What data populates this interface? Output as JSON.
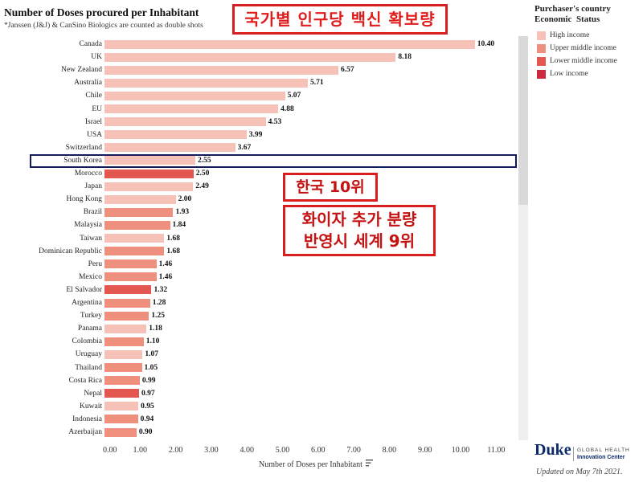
{
  "overlays": {
    "headline": "국가별 인구당 백신 확보량",
    "rank": "한국 10위",
    "note_line1": "화이자 추가 분량",
    "note_line2": "반영시 세계 9위"
  },
  "legend": {
    "title_line1": "Purchaser's country",
    "title_line2": "Economic  Status",
    "position": "right",
    "items": [
      {
        "label": "High income",
        "color": "#f6c1b7"
      },
      {
        "label": "Upper middle income",
        "color": "#ef8f7d"
      },
      {
        "label": "Lower middle income",
        "color": "#e45750"
      },
      {
        "label": "Low income",
        "color": "#cc2a40"
      }
    ]
  },
  "chart_data": {
    "type": "bar",
    "orientation": "horizontal",
    "title": "Number of Doses procured per Inhabitant",
    "subtitle": "*Janssen (J&J) & CanSino Biologics are counted as double shots",
    "xlabel": "Number of Doses per Inhabitant",
    "ylabel": "",
    "xlim": [
      0,
      11.5
    ],
    "grid": false,
    "x_ticks": [
      "0.00",
      "1.00",
      "2.00",
      "3.00",
      "4.00",
      "5.00",
      "6.00",
      "7.00",
      "8.00",
      "9.00",
      "10.00",
      "11.00"
    ],
    "categories": [
      "Canada",
      "UK",
      "New Zealand",
      "Australia",
      "Chile",
      "EU",
      "Israel",
      "USA",
      "Switzerland",
      "South Korea",
      "Morocco",
      "Japan",
      "Hong Kong",
      "Brazil",
      "Malaysia",
      "Taiwan",
      "Dominican Republic",
      "Peru",
      "Mexico",
      "El Salvador",
      "Argentina",
      "Turkey",
      "Panama",
      "Colombia",
      "Uruguay",
      "Thailand",
      "Costa Rica",
      "Nepal",
      "Kuwait",
      "Indonesia",
      "Azerbaijan"
    ],
    "values": [
      10.4,
      8.18,
      6.57,
      5.71,
      5.07,
      4.88,
      4.53,
      3.99,
      3.67,
      2.55,
      2.5,
      2.49,
      2.0,
      1.93,
      1.84,
      1.68,
      1.68,
      1.46,
      1.46,
      1.32,
      1.28,
      1.25,
      1.18,
      1.1,
      1.07,
      1.05,
      0.99,
      0.97,
      0.95,
      0.94,
      0.9
    ],
    "value_labels": [
      "10.40",
      "8.18",
      "6.57",
      "5.71",
      "5.07",
      "4.88",
      "4.53",
      "3.99",
      "3.67",
      "2.55",
      "2.50",
      "2.49",
      "2.00",
      "1.93",
      "1.84",
      "1.68",
      "1.68",
      "1.46",
      "1.46",
      "1.32",
      "1.28",
      "1.25",
      "1.18",
      "1.10",
      "1.07",
      "1.05",
      "0.99",
      "0.97",
      "0.95",
      "0.94",
      "0.90"
    ],
    "income_group_index": [
      0,
      0,
      0,
      0,
      0,
      0,
      0,
      0,
      0,
      0,
      2,
      0,
      0,
      1,
      1,
      0,
      1,
      1,
      1,
      2,
      1,
      1,
      0,
      1,
      0,
      1,
      1,
      2,
      0,
      1,
      1
    ],
    "highlight_index": 9
  },
  "footer": {
    "logo": "Duke",
    "logo_line1": "GLOBAL HEALTH",
    "logo_line2": "Innovation Center",
    "updated": "Updated on May 7th 2021."
  },
  "icons": {
    "sort": "sort-icon"
  }
}
